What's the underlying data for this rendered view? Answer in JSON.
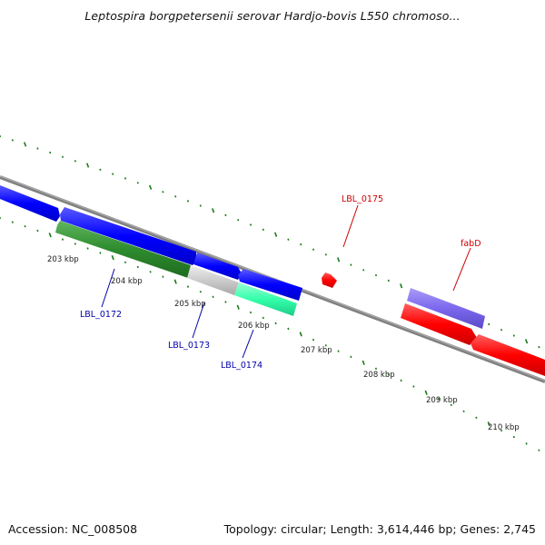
{
  "title": "Leptospira borgpetersenii serovar Hardjo-bovis L550 chromoso...",
  "footer": {
    "accession": "Accession: NC_008508",
    "stats": "Topology: circular; Length: 3,614,446 bp; Genes: 2,745"
  },
  "colors": {
    "backbone": "#808080",
    "ticks": "#1a7a1a",
    "forward_strand_gene": "#0000ff",
    "reverse_strand_gene": "#ff0000",
    "operon_green": "#2e8b2e",
    "gray_gene": "#cccccc",
    "teal_gene": "#33ffaa",
    "lavender_gene": "#7b68ee",
    "label_blue": "#0000aa",
    "label_red": "#cc0000"
  },
  "scale_labels": [
    "203 kbp",
    "204 kbp",
    "205 kbp",
    "206 kbp",
    "207 kbp",
    "208 kbp",
    "209 kbp",
    "210 kbp"
  ],
  "gene_labels": [
    {
      "text": "LBL_0172",
      "color": "label_blue"
    },
    {
      "text": "LBL_0173",
      "color": "label_blue"
    },
    {
      "text": "LBL_0174",
      "color": "label_blue"
    },
    {
      "text": "LBL_0175",
      "color": "label_red"
    },
    {
      "text": "fabD",
      "color": "label_red"
    }
  ]
}
